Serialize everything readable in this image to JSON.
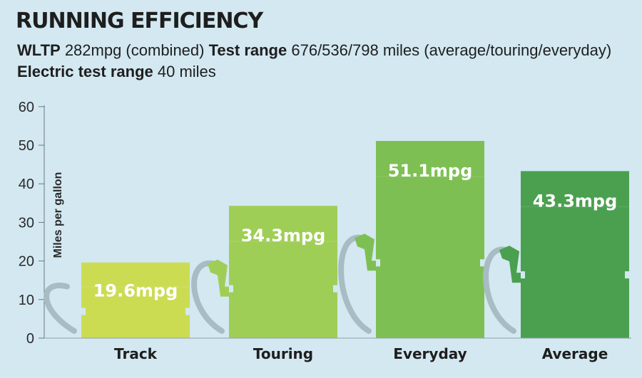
{
  "title": "RUNNING EFFICIENCY",
  "subtitle": {
    "wltp_label": "WLTP",
    "wltp_value": "282mpg (combined)",
    "test_range_label": "Test range",
    "test_range_value": "676/536/798 miles (average/touring/everyday)",
    "electric_label": "Electric test range",
    "electric_value": "40 miles"
  },
  "colors": {
    "background": "#d3e8f1",
    "pump_line": "#a8bcc3",
    "bar_colors": [
      "#cbdc53",
      "#9fce57",
      "#7ebf54",
      "#4aa04f"
    ]
  },
  "chart_data": {
    "type": "bar",
    "title": "RUNNING EFFICIENCY",
    "ylabel": "Miles per gallon",
    "xlabel": "",
    "ylim": [
      0,
      60
    ],
    "yticks": [
      0,
      10,
      20,
      30,
      40,
      50,
      60
    ],
    "categories": [
      "Track",
      "Touring",
      "Everyday",
      "Average"
    ],
    "values": [
      19.6,
      34.3,
      51.1,
      43.3
    ],
    "data_labels": [
      "19.6mpg",
      "34.3mpg",
      "51.1mpg",
      "43.3mpg"
    ],
    "bar_style": "fuel-pump"
  }
}
